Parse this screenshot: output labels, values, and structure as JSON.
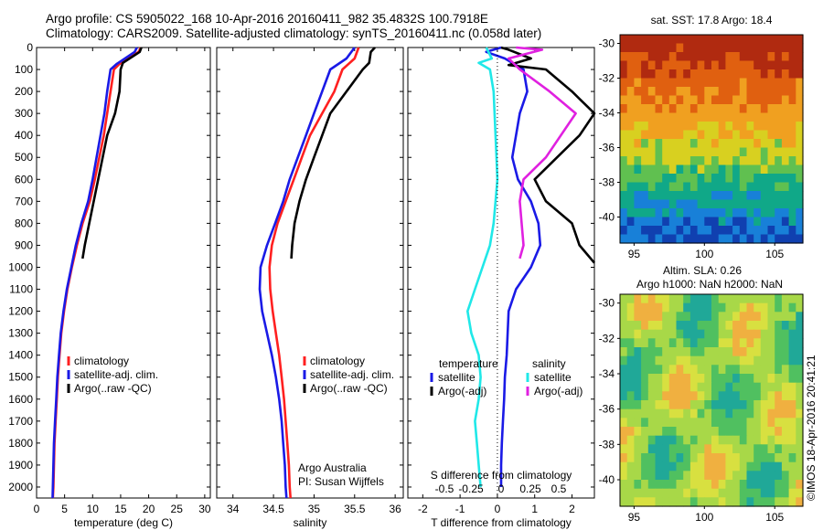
{
  "header": {
    "line1": "Argo profile: CS 5905022_168 10-Apr-2016 20160411_982 35.4832S 100.7918E",
    "line2": "Climatology: CARS2009. Satellite-adjusted climatology: synTS_20160411.nc (0.058d later)"
  },
  "colors": {
    "climatology": "#ff2020",
    "satellite": "#1a1ae6",
    "argo": "#000000",
    "sal_satellite": "#20e8e8",
    "sal_argo": "#e020e0"
  },
  "chart_data": [
    {
      "type": "line",
      "panel": "temperature",
      "xlabel": "temperature (deg C)",
      "ylabel": "",
      "xlim": [
        0,
        31
      ],
      "ylim": [
        2050,
        0
      ],
      "y_reversed": true,
      "xticks": [
        0,
        5,
        10,
        15,
        20,
        25,
        30
      ],
      "yticks": [
        0,
        100,
        200,
        300,
        400,
        500,
        600,
        700,
        800,
        900,
        1000,
        1100,
        1200,
        1300,
        1400,
        1500,
        1600,
        1700,
        1800,
        1900,
        2000
      ],
      "legend_position": "lower-center",
      "legend": [
        "climatology",
        "satellite-adj. clim.",
        "Argo(..raw -QC)"
      ],
      "series": [
        {
          "name": "climatology",
          "x": [
            18.6,
            18.2,
            14.8,
            13.8,
            13.2,
            12.6,
            12.0,
            11.2,
            10.4,
            9.5,
            8.2,
            7.2,
            6.3,
            5.5,
            4.9,
            4.4,
            4.1,
            3.8,
            3.6,
            3.4,
            3.2,
            3.1,
            3.0,
            2.9
          ],
          "y": [
            0,
            20,
            75,
            100,
            200,
            300,
            400,
            500,
            600,
            700,
            800,
            900,
            1000,
            1100,
            1200,
            1300,
            1400,
            1500,
            1600,
            1700,
            1800,
            1900,
            2000,
            2050
          ]
        },
        {
          "name": "satellite-adj. clim.",
          "x": [
            17.9,
            17.5,
            14.3,
            13.2,
            12.6,
            12.1,
            11.4,
            10.7,
            10.0,
            9.2,
            8.0,
            7.0,
            6.2,
            5.4,
            4.8,
            4.3,
            4.0,
            3.7,
            3.5,
            3.3,
            3.1,
            3.0,
            2.9,
            2.85
          ],
          "y": [
            0,
            20,
            75,
            100,
            200,
            300,
            400,
            500,
            600,
            700,
            800,
            900,
            1000,
            1100,
            1200,
            1300,
            1400,
            1500,
            1600,
            1700,
            1800,
            1900,
            2000,
            2050
          ]
        },
        {
          "name": "Argo(..raw -QC)",
          "x": [
            18.7,
            18.4,
            15.4,
            15.0,
            14.8,
            14.0,
            12.6,
            11.8,
            11.0,
            10.2,
            9.4,
            8.6,
            8.2
          ],
          "y": [
            0,
            20,
            70,
            100,
            200,
            300,
            400,
            500,
            600,
            700,
            800,
            900,
            960
          ]
        }
      ]
    },
    {
      "type": "line",
      "panel": "salinity",
      "xlabel": "salinity",
      "ylabel": "",
      "xlim": [
        33.8,
        36.1
      ],
      "ylim": [
        2050,
        0
      ],
      "y_reversed": true,
      "xticks": [
        34,
        34.5,
        35,
        35.5,
        36
      ],
      "legend_position": "lower-right",
      "legend": [
        "climatology",
        "satellite-adj. clim.",
        "Argo(..raw -QC)"
      ],
      "annotations": [
        "Argo Australia",
        "PI: Susan Wijffels"
      ],
      "series": [
        {
          "name": "climatology",
          "x": [
            35.55,
            35.5,
            35.35,
            35.25,
            35.1,
            34.95,
            34.85,
            34.75,
            34.65,
            34.55,
            34.48,
            34.45,
            34.46,
            34.49,
            34.53,
            34.57,
            34.6,
            34.63,
            34.65,
            34.67,
            34.69,
            34.7,
            34.71
          ],
          "y": [
            0,
            50,
            100,
            200,
            300,
            400,
            500,
            600,
            700,
            800,
            900,
            1000,
            1100,
            1200,
            1300,
            1400,
            1500,
            1600,
            1700,
            1800,
            1900,
            2000,
            2050
          ]
        },
        {
          "name": "satellite-adj. clim.",
          "x": [
            35.5,
            35.4,
            35.2,
            35.1,
            35.0,
            34.9,
            34.8,
            34.7,
            34.62,
            34.52,
            34.42,
            34.34,
            34.33,
            34.36,
            34.42,
            34.48,
            34.53,
            34.57,
            34.6,
            34.62,
            34.64,
            34.65,
            34.66
          ],
          "y": [
            0,
            50,
            100,
            200,
            300,
            400,
            500,
            600,
            700,
            800,
            900,
            1000,
            1100,
            1200,
            1300,
            1400,
            1500,
            1600,
            1700,
            1800,
            1900,
            2000,
            2050
          ]
        },
        {
          "name": "Argo(..raw -QC)",
          "x": [
            35.75,
            35.7,
            35.68,
            35.6,
            35.4,
            35.2,
            35.1,
            35.0,
            34.9,
            34.82,
            34.76,
            34.73,
            34.72
          ],
          "y": [
            0,
            20,
            70,
            100,
            200,
            300,
            400,
            500,
            600,
            700,
            800,
            900,
            960
          ]
        }
      ]
    },
    {
      "type": "line",
      "panel": "differences",
      "xlabel": "T difference from climatology",
      "xlabel_top": "S difference from climatology",
      "xlim": [
        -2.4,
        2.6
      ],
      "ylim": [
        2050,
        0
      ],
      "y_reversed": true,
      "xticks": [
        -2,
        -1,
        0,
        1,
        2
      ],
      "s_ticks": [
        -0.5,
        -0.25,
        0,
        0.25,
        0.5
      ],
      "legend": {
        "temperature_heading": "temperature",
        "salinity_heading": "salinity",
        "items": [
          "satellite",
          "Argo(-adj)",
          "satellite",
          "Argo(-adj)"
        ]
      },
      "series": [
        {
          "name": "temperature satellite",
          "x": [
            0.1,
            -0.3,
            0.2,
            0.5,
            0.7,
            0.8,
            0.6,
            0.5,
            0.4,
            0.55,
            0.9,
            1.1,
            1.15,
            0.9,
            0.5,
            0.3,
            0.25,
            0.2,
            0.18,
            0.15,
            0.12,
            0.1,
            0.1
          ],
          "y": [
            0,
            20,
            50,
            80,
            100,
            200,
            300,
            400,
            500,
            600,
            700,
            800,
            900,
            1000,
            1100,
            1200,
            1400,
            1500,
            1600,
            1700,
            1800,
            1900,
            2000
          ]
        },
        {
          "name": "temperature Argo(-adj)",
          "x": [
            0.1,
            0.3,
            0.9,
            0.3,
            1.3,
            2.0,
            2.6,
            2.2,
            1.6,
            1.0,
            1.3,
            2.0,
            2.2,
            2.6
          ],
          "y": [
            0,
            10,
            50,
            80,
            100,
            200,
            300,
            400,
            500,
            600,
            700,
            800,
            900,
            980
          ]
        },
        {
          "name": "salinity satellite",
          "x": [
            -0.3,
            -0.15,
            -0.5,
            -0.2,
            -0.1,
            -0.05,
            0.0,
            -0.05,
            -0.1,
            -0.2,
            -0.4,
            -0.6,
            -0.8,
            -0.7,
            -0.5,
            -0.45,
            -0.5,
            -0.6,
            -0.55,
            -0.5,
            -0.45
          ],
          "y": [
            0,
            50,
            70,
            100,
            200,
            400,
            600,
            700,
            800,
            900,
            1000,
            1100,
            1200,
            1300,
            1400,
            1500,
            1600,
            1700,
            1800,
            1900,
            2000
          ]
        },
        {
          "name": "salinity Argo(-adj)",
          "x": [
            0.5,
            1.2,
            0.3,
            0.6,
            1.4,
            2.1,
            1.3,
            0.7,
            0.6,
            0.7,
            0.6
          ],
          "y": [
            0,
            10,
            50,
            100,
            200,
            300,
            500,
            600,
            700,
            900,
            960
          ]
        }
      ]
    },
    {
      "type": "heatmap",
      "panel": "sst_map",
      "title": "sat. SST: 17.8 Argo: 18.4",
      "xticks": [
        95,
        100,
        105
      ],
      "yticks": [
        -30,
        -32,
        -34,
        -36,
        -38,
        -40
      ],
      "xlim": [
        94,
        107
      ],
      "ylim": [
        -41.5,
        -29.5
      ]
    },
    {
      "type": "heatmap",
      "panel": "sla_map",
      "title_line1": "Altim. SLA: 0.26",
      "title_line2": "Argo h1000: NaN h2000: NaN",
      "xticks": [
        95,
        100,
        105
      ],
      "yticks": [
        -30,
        -32,
        -34,
        -36,
        -38,
        -40
      ],
      "xlim": [
        94,
        107
      ],
      "ylim": [
        -41.5,
        -29.5
      ]
    }
  ],
  "footer": {
    "stamp": "©IMOS 18-Apr-2016 20:41:21"
  }
}
